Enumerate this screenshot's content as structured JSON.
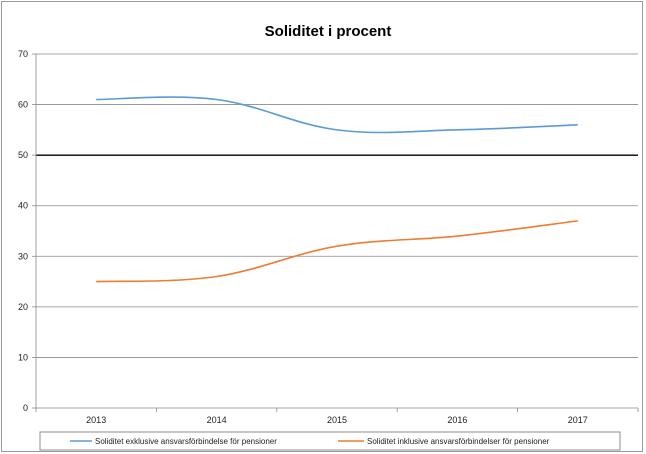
{
  "chart_data": {
    "type": "line",
    "title": "Soliditet i procent",
    "xlabel": "",
    "ylabel": "",
    "categories": [
      "2013",
      "2014",
      "2015",
      "2016",
      "2017"
    ],
    "ylim": [
      0,
      70
    ],
    "yticks": [
      "0",
      "10",
      "20",
      "30",
      "40",
      "50",
      "60",
      "70"
    ],
    "grid": true,
    "highlighted_gridline": "50",
    "legend_position": "bottom",
    "series": [
      {
        "name": "Soliditet exklusive ansvarsförbindelse för pensioner",
        "values": [
          61,
          61,
          55,
          55,
          56
        ],
        "color": "#5b9bd5"
      },
      {
        "name": "Soliditet inklusive ansvarsförbindelser för pensioner",
        "values": [
          25,
          26,
          32,
          34,
          37
        ],
        "color": "#ed7d31"
      }
    ]
  }
}
